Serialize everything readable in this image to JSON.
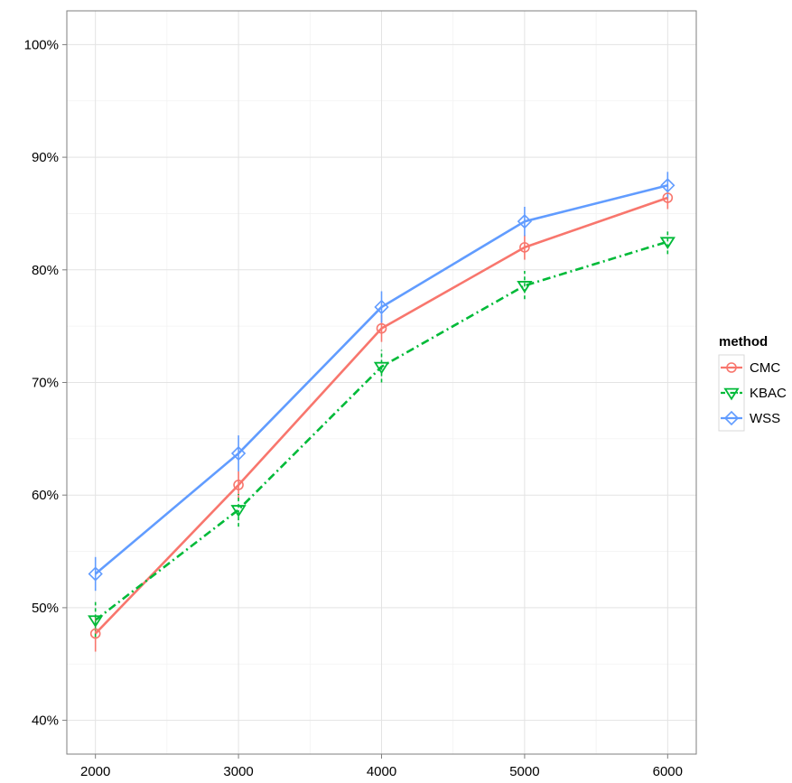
{
  "chart_data": {
    "type": "line",
    "title": "",
    "xlabel": "",
    "ylabel": "",
    "x": [
      2000,
      3000,
      4000,
      5000,
      6000
    ],
    "x_ticks": [
      "2000",
      "3000",
      "4000",
      "5000",
      "6000"
    ],
    "y_ticks": [
      "40%",
      "50%",
      "60%",
      "70%",
      "80%",
      "90%",
      "100%"
    ],
    "y_tick_values": [
      40,
      50,
      60,
      70,
      80,
      90,
      100
    ],
    "xlim": [
      1800,
      6200
    ],
    "ylim": [
      37,
      103
    ],
    "y_unit": "percent",
    "grid": true,
    "legend": {
      "title": "method",
      "position": "right"
    },
    "series": [
      {
        "name": "CMC",
        "color": "#f8766d",
        "line_style": "solid",
        "marker": "circle",
        "values": [
          47.7,
          60.9,
          74.8,
          82.0,
          86.4
        ],
        "error_low": [
          46.1,
          59.6,
          73.6,
          80.9,
          85.4
        ],
        "error_high": [
          49.2,
          62.1,
          76.0,
          83.1,
          87.5
        ]
      },
      {
        "name": "KBAC",
        "color": "#00ba38",
        "line_style": "dashdot",
        "marker": "triangle-down",
        "values": [
          48.9,
          58.7,
          71.4,
          78.6,
          82.5
        ],
        "error_low": [
          47.4,
          57.2,
          70.0,
          77.4,
          81.4
        ],
        "error_high": [
          50.5,
          60.1,
          72.9,
          79.9,
          83.6
        ]
      },
      {
        "name": "WSS",
        "color": "#619cff",
        "line_style": "solid",
        "marker": "diamond",
        "values": [
          53.0,
          63.7,
          76.7,
          84.3,
          87.5
        ],
        "error_low": [
          51.5,
          62.1,
          75.3,
          83.0,
          86.3
        ],
        "error_high": [
          54.5,
          65.3,
          78.1,
          85.6,
          88.7
        ]
      }
    ]
  }
}
